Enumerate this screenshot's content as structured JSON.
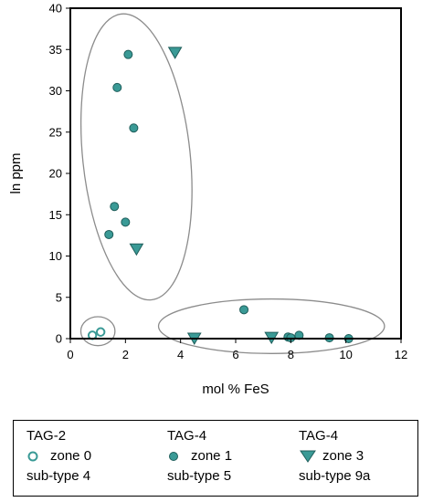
{
  "chart_data": {
    "type": "scatter",
    "xlabel": "mol % FeS",
    "ylabel": "ln ppm",
    "xlim": [
      0,
      12
    ],
    "ylim": [
      0,
      40
    ],
    "xticks": [
      "0",
      "2",
      "4",
      "6",
      "8",
      "10",
      "12"
    ],
    "yticks": [
      "0",
      "5",
      "10",
      "15",
      "20",
      "25",
      "30",
      "35",
      "40"
    ],
    "grid": false,
    "legend_position": "bottom",
    "colors": {
      "marker": "#3a9a96",
      "marker_edge": "#1f5e5b",
      "ellipse": "#8c8c8c"
    },
    "series": [
      {
        "marker": "open-circle",
        "points": [
          [
            0.8,
            0.4
          ],
          [
            1.1,
            0.8
          ]
        ]
      },
      {
        "marker": "filled-circle",
        "points": [
          [
            2.1,
            34.4
          ],
          [
            1.7,
            30.4
          ],
          [
            2.3,
            25.5
          ],
          [
            1.6,
            16.0
          ],
          [
            2.0,
            14.1
          ],
          [
            1.4,
            12.6
          ],
          [
            6.3,
            3.5
          ],
          [
            7.9,
            0.2
          ],
          [
            8.0,
            0.1
          ],
          [
            8.3,
            0.4
          ],
          [
            9.4,
            0.1
          ],
          [
            10.1,
            0.0
          ]
        ]
      },
      {
        "marker": "triangle-down",
        "points": [
          [
            3.8,
            34.6
          ],
          [
            2.4,
            10.8
          ],
          [
            4.5,
            0.0
          ],
          [
            7.3,
            0.1
          ]
        ]
      }
    ],
    "ellipses": [
      {
        "cx": 2.4,
        "cy": 22.0,
        "rx": 1.95,
        "ry": 17.4,
        "angle": -6
      },
      {
        "cx": 1.0,
        "cy": 0.9,
        "rx": 0.62,
        "ry": 1.75,
        "angle": 0
      },
      {
        "cx": 7.3,
        "cy": 1.5,
        "rx": 4.1,
        "ry": 3.3,
        "angle": 0
      }
    ]
  },
  "legend": [
    {
      "line1": "TAG-2",
      "line2": "zone 0",
      "line3": "sub-type 4",
      "marker": "open-circle"
    },
    {
      "line1": "TAG-4",
      "line2": "zone 1",
      "line3": "sub-type 5",
      "marker": "filled-circle"
    },
    {
      "line1": "TAG-4",
      "line2": "zone 3",
      "line3": "sub-type 9a",
      "marker": "triangle-down"
    }
  ]
}
